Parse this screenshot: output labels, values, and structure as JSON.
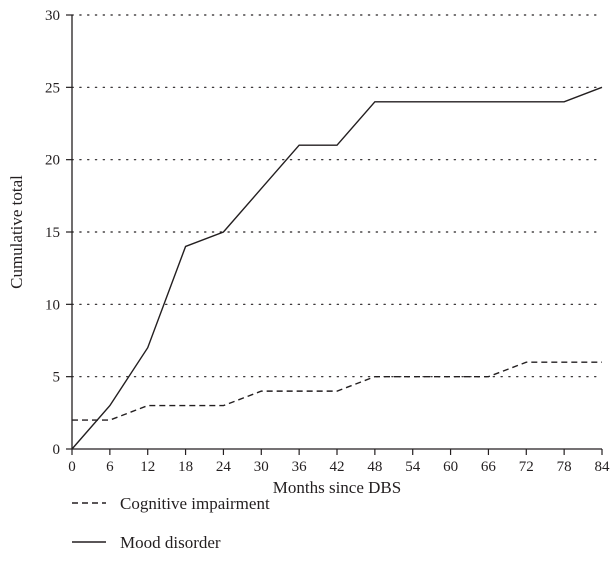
{
  "chart_data": {
    "type": "line",
    "title": "",
    "xlabel": "Months since DBS",
    "ylabel": "Cumulative total",
    "xlim": [
      0,
      84
    ],
    "ylim": [
      0,
      30
    ],
    "x_ticks": [
      0,
      6,
      12,
      18,
      24,
      30,
      36,
      42,
      48,
      54,
      60,
      66,
      72,
      78,
      84
    ],
    "y_ticks": [
      0,
      5,
      10,
      15,
      20,
      25,
      30
    ],
    "grid": "horizontal dotted",
    "legend_position": "bottom-left",
    "series": [
      {
        "name": "Cognitive impairment",
        "style": "dashed",
        "points": [
          [
            0,
            2
          ],
          [
            6,
            2
          ],
          [
            12,
            3
          ],
          [
            18,
            3
          ],
          [
            24,
            3
          ],
          [
            30,
            4
          ],
          [
            36,
            4
          ],
          [
            42,
            4
          ],
          [
            48,
            5
          ],
          [
            54,
            5
          ],
          [
            60,
            5
          ],
          [
            66,
            5
          ],
          [
            72,
            6
          ],
          [
            78,
            6
          ],
          [
            84,
            6
          ]
        ]
      },
      {
        "name": "Mood disorder",
        "style": "solid",
        "points": [
          [
            0,
            0
          ],
          [
            6,
            3
          ],
          [
            12,
            7
          ],
          [
            18,
            14
          ],
          [
            24,
            15
          ],
          [
            30,
            18
          ],
          [
            36,
            21
          ],
          [
            42,
            21
          ],
          [
            48,
            24
          ],
          [
            54,
            24
          ],
          [
            60,
            24
          ],
          [
            66,
            24
          ],
          [
            72,
            24
          ],
          [
            78,
            24
          ],
          [
            84,
            25
          ]
        ]
      }
    ],
    "colors": {
      "line": "#231f20",
      "grid": "#231f20"
    }
  }
}
